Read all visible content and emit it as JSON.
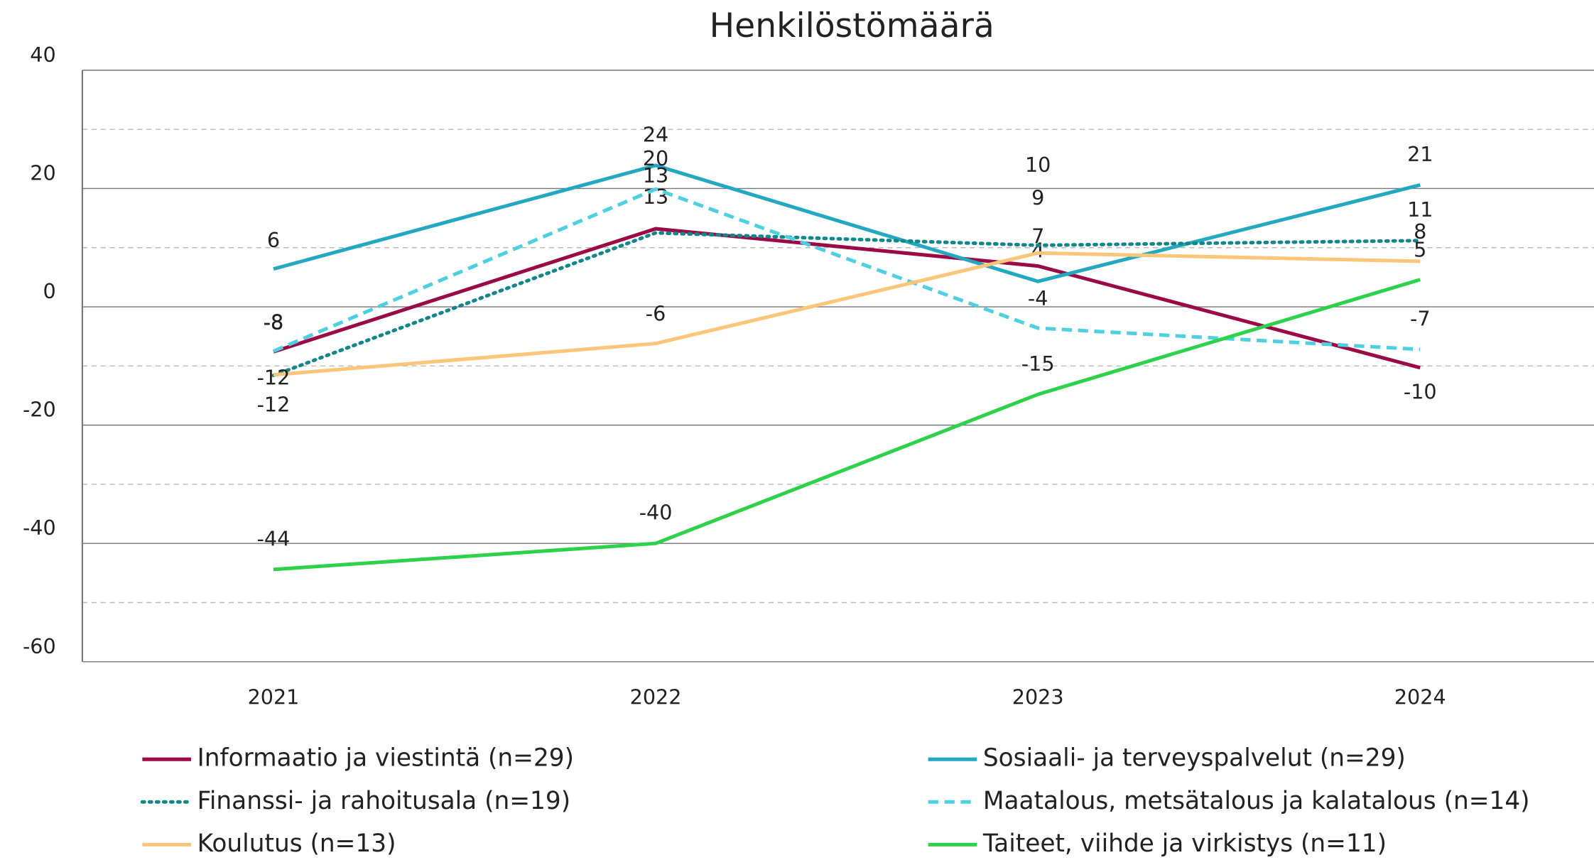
{
  "chart_data": {
    "type": "line",
    "title": "Henkilöstömäärä",
    "categories": [
      "2021",
      "2022",
      "2023",
      "2024"
    ],
    "ylim": [
      -60,
      40
    ],
    "yticks": [
      -60,
      -40,
      -20,
      0,
      20,
      40
    ],
    "minor_yticks": [
      -50,
      -30,
      -10,
      10,
      30
    ],
    "grid": true,
    "legend": "bottom",
    "series": [
      {
        "name": "Informaatio ja viestintä (n=29)",
        "color": "#9b0a45",
        "linestyle": "solid",
        "values": [
          -7.6,
          13.2,
          6.9,
          -10.3
        ],
        "value_labels": [
          "-8",
          "13",
          "7",
          "-10"
        ]
      },
      {
        "name": "Sosiaali- ja terveyspalvelut (n=29)",
        "color": "#22a8c0",
        "linestyle": "solid",
        "values": [
          6.4,
          23.9,
          4.3,
          20.6
        ],
        "value_labels": [
          "6",
          "24",
          "4",
          "21"
        ]
      },
      {
        "name": "Finanssi- ja rahoitusala (n=19)",
        "color": "#13868a",
        "linestyle": "dotted",
        "values": [
          -11.6,
          12.5,
          10.4,
          11.2
        ],
        "value_labels": [
          "-12",
          "13",
          "10",
          "11"
        ]
      },
      {
        "name": "Maatalous, metsätalous ja kalatalous (n=14)",
        "color": "#4fd0e0",
        "linestyle": "dashed",
        "values": [
          -7.5,
          19.9,
          -3.6,
          -7.2
        ],
        "value_labels": [
          "-8",
          "20",
          "-4",
          "-7"
        ]
      },
      {
        "name": "Koulutus (n=13)",
        "color": "#fcc67a",
        "linestyle": "solid",
        "values": [
          -11.5,
          -6.2,
          9.1,
          7.7
        ],
        "value_labels": [
          "-12",
          "-6",
          "9",
          "8"
        ]
      },
      {
        "name": "Taiteet, viihde ja virkistys (n=11)",
        "color": "#2ed14a",
        "linestyle": "solid",
        "values": [
          -44.4,
          -40.0,
          -14.8,
          4.6
        ],
        "value_labels": [
          "-44",
          "-40",
          "-15",
          "5"
        ]
      }
    ]
  }
}
